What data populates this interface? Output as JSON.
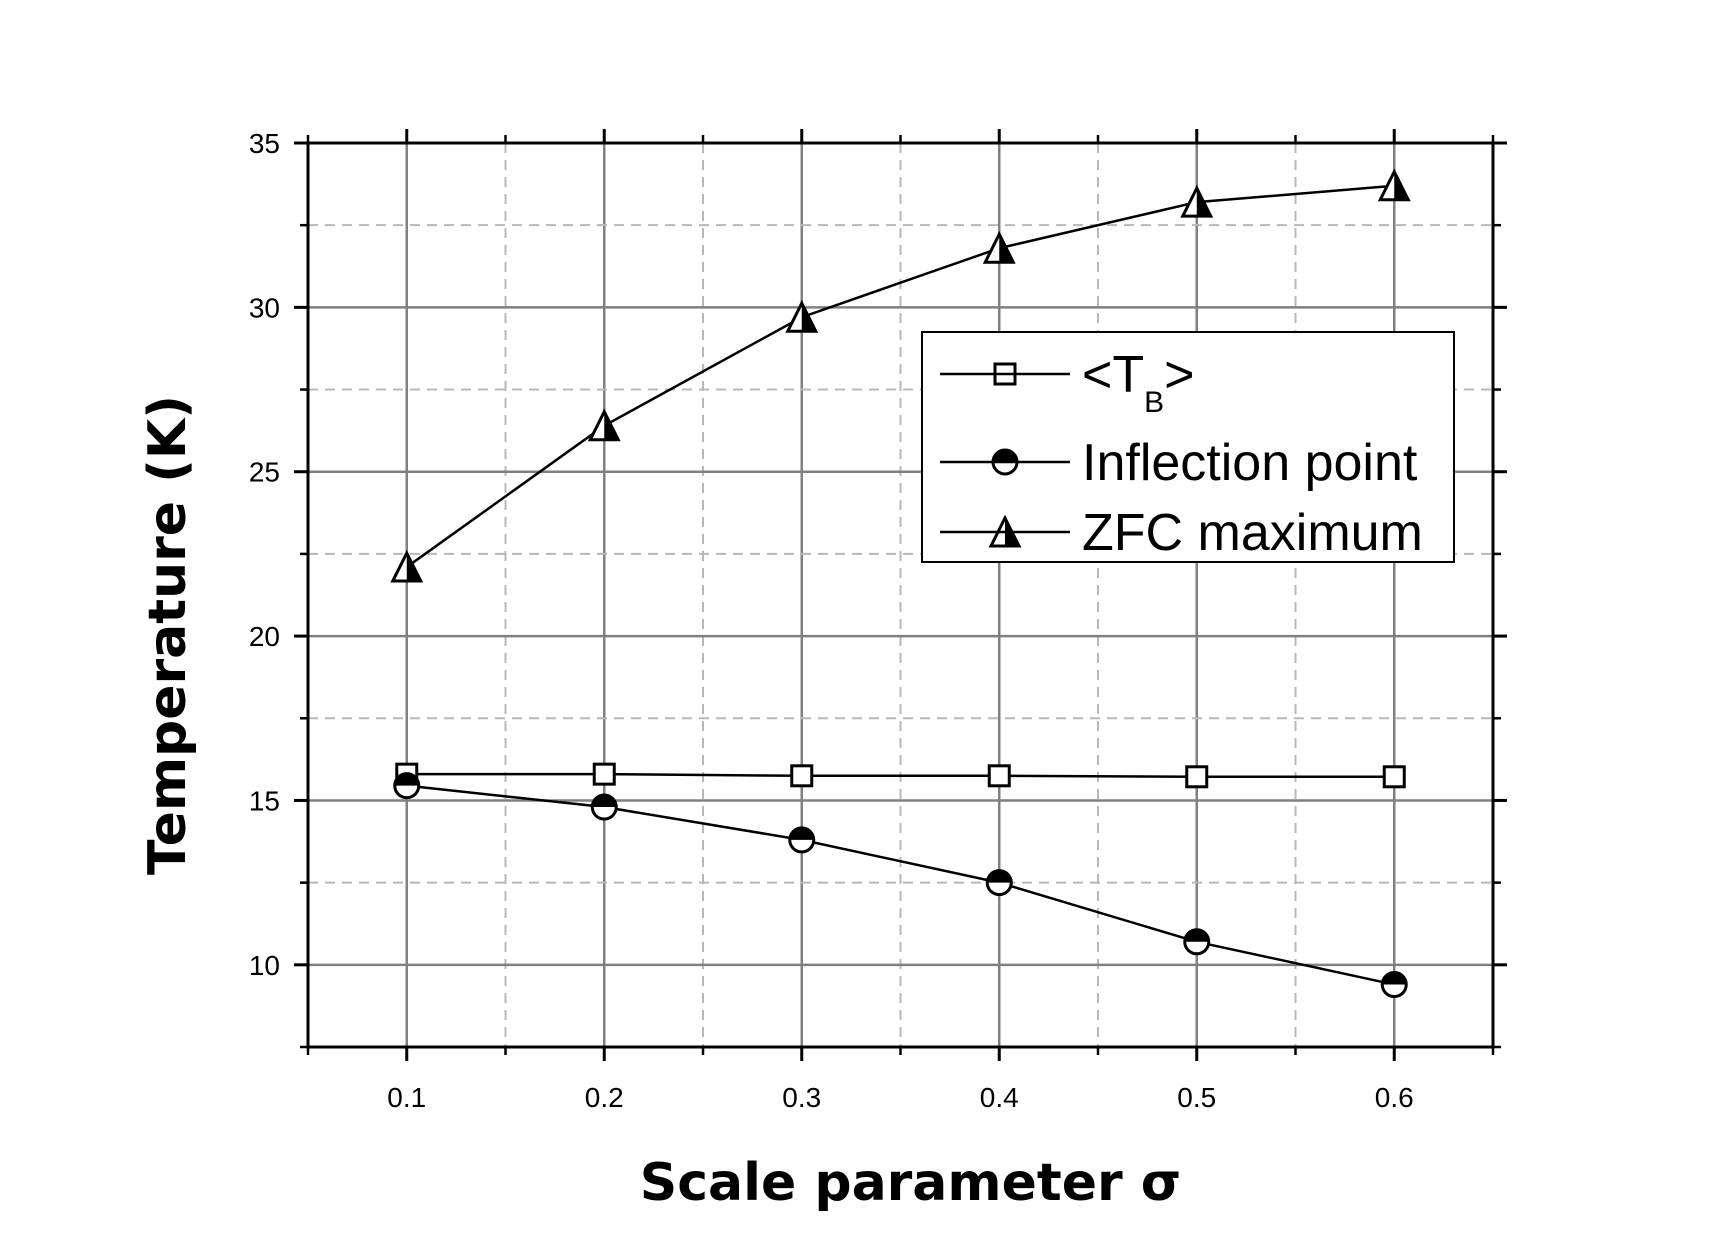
{
  "chart_data": {
    "type": "line",
    "title": "",
    "xlabel": "Scale parameter σ",
    "ylabel": "Temperature (K)",
    "xlim": [
      0.05,
      0.65
    ],
    "ylim": [
      7.5,
      35
    ],
    "x_ticks": [
      "0.1",
      "0.2",
      "0.3",
      "0.4",
      "0.5",
      "0.6"
    ],
    "y_ticks": [
      "10",
      "15",
      "20",
      "25",
      "30",
      "35"
    ],
    "grid": true,
    "legend_position": "upper-right",
    "series": [
      {
        "name": "<TB>",
        "legend_main_left": "<T",
        "legend_sub": "B",
        "legend_main_right": ">",
        "marker": "open-square",
        "x": [
          0.1,
          0.2,
          0.3,
          0.4,
          0.5,
          0.6
        ],
        "y": [
          15.8,
          15.8,
          15.75,
          15.75,
          15.72,
          15.72
        ]
      },
      {
        "name": "Inflection point",
        "marker": "half-filled-circle",
        "x": [
          0.1,
          0.2,
          0.3,
          0.4,
          0.5,
          0.6
        ],
        "y": [
          15.45,
          14.8,
          13.8,
          12.5,
          10.7,
          9.4
        ]
      },
      {
        "name": "ZFC maximum",
        "marker": "half-filled-triangle",
        "x": [
          0.1,
          0.2,
          0.3,
          0.4,
          0.5,
          0.6
        ],
        "y": [
          22.1,
          26.4,
          29.7,
          31.8,
          33.2,
          33.7
        ]
      }
    ]
  }
}
